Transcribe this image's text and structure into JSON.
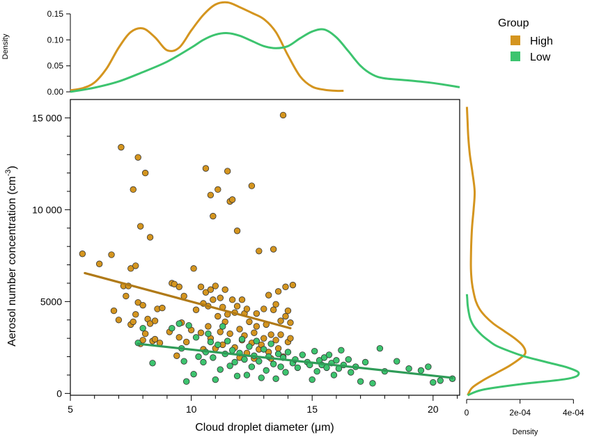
{
  "chart_data": {
    "type": "scatter",
    "xlabel_text": "Cloud droplet diameter (",
    "xlabel_unit": "μm",
    "xlabel_close": ")",
    "ylabel_text": "Aerosol number concentration (cm",
    "ylabel_exp": "-3",
    "ylabel_close": ")",
    "xlim": [
      5,
      21.1
    ],
    "ylim": [
      -100,
      16000
    ],
    "x_ticks": [
      5,
      10,
      15,
      20
    ],
    "y_ticks": [
      0,
      5000,
      10000,
      15000
    ],
    "y_tick_labels": [
      "0",
      "5000",
      "10 000",
      "15 000"
    ],
    "legend": {
      "title": "Group",
      "entries": [
        {
          "label": "High",
          "color": "#d4951f"
        },
        {
          "label": "Low",
          "color": "#3dc46f"
        }
      ]
    },
    "series": [
      {
        "name": "High",
        "color": "#d4951f",
        "trend_color": "#b07a18",
        "trend": [
          [
            5.6,
            6550
          ],
          [
            14.1,
            3550
          ]
        ],
        "points": [
          [
            5.5,
            7600
          ],
          [
            6.2,
            7050
          ],
          [
            6.7,
            7550
          ],
          [
            6.8,
            4500
          ],
          [
            7.0,
            4000
          ],
          [
            7.1,
            13400
          ],
          [
            7.2,
            5850
          ],
          [
            7.3,
            5300
          ],
          [
            7.4,
            5850
          ],
          [
            7.5,
            3750
          ],
          [
            7.5,
            6800
          ],
          [
            7.6,
            11100
          ],
          [
            7.6,
            3900
          ],
          [
            7.7,
            6950
          ],
          [
            7.7,
            4300
          ],
          [
            7.8,
            12850
          ],
          [
            7.8,
            4950
          ],
          [
            7.9,
            2700
          ],
          [
            7.9,
            9100
          ],
          [
            8.0,
            4800
          ],
          [
            8.0,
            2900
          ],
          [
            8.1,
            3250
          ],
          [
            8.1,
            12000
          ],
          [
            8.2,
            4050
          ],
          [
            8.3,
            8500
          ],
          [
            8.3,
            3800
          ],
          [
            8.4,
            2850
          ],
          [
            8.5,
            3950
          ],
          [
            8.5,
            2950
          ],
          [
            8.6,
            4600
          ],
          [
            8.7,
            2750
          ],
          [
            8.8,
            4650
          ],
          [
            9.1,
            3350
          ],
          [
            9.2,
            6000
          ],
          [
            9.3,
            5950
          ],
          [
            9.4,
            2050
          ],
          [
            9.5,
            5800
          ],
          [
            9.5,
            3050
          ],
          [
            9.6,
            3850
          ],
          [
            9.7,
            5300
          ],
          [
            9.8,
            2800
          ],
          [
            10.0,
            3450
          ],
          [
            10.1,
            6800
          ],
          [
            10.2,
            4550
          ],
          [
            10.4,
            5800
          ],
          [
            10.4,
            3300
          ],
          [
            10.5,
            4900
          ],
          [
            10.5,
            2400
          ],
          [
            10.6,
            12250
          ],
          [
            10.6,
            5500
          ],
          [
            10.7,
            4750
          ],
          [
            10.7,
            3650
          ],
          [
            10.8,
            10800
          ],
          [
            10.8,
            5650
          ],
          [
            10.8,
            3000
          ],
          [
            10.9,
            9650
          ],
          [
            10.9,
            5100
          ],
          [
            11.0,
            5850
          ],
          [
            11.0,
            2450
          ],
          [
            11.1,
            4200
          ],
          [
            11.1,
            11100
          ],
          [
            11.2,
            5200
          ],
          [
            11.2,
            3350
          ],
          [
            11.3,
            4700
          ],
          [
            11.3,
            2650
          ],
          [
            11.4,
            5650
          ],
          [
            11.4,
            3900
          ],
          [
            11.5,
            12100
          ],
          [
            11.5,
            4300
          ],
          [
            11.6,
            10450
          ],
          [
            11.6,
            3250
          ],
          [
            11.7,
            10550
          ],
          [
            11.7,
            5100
          ],
          [
            11.8,
            4400
          ],
          [
            11.8,
            2500
          ],
          [
            11.9,
            8850
          ],
          [
            11.9,
            4750
          ],
          [
            12.0,
            3500
          ],
          [
            12.0,
            1950
          ],
          [
            12.1,
            2900
          ],
          [
            12.1,
            5100
          ],
          [
            12.2,
            4350
          ],
          [
            12.2,
            3150
          ],
          [
            12.3,
            4600
          ],
          [
            12.3,
            2200
          ],
          [
            12.4,
            3900
          ],
          [
            12.5,
            11300
          ],
          [
            12.5,
            2750
          ],
          [
            12.6,
            3300
          ],
          [
            12.6,
            1900
          ],
          [
            12.7,
            4350
          ],
          [
            12.7,
            3650
          ],
          [
            12.8,
            7750
          ],
          [
            12.8,
            2400
          ],
          [
            12.9,
            2650
          ],
          [
            13.0,
            3000
          ],
          [
            13.0,
            4600
          ],
          [
            13.1,
            3750
          ],
          [
            13.2,
            2250
          ],
          [
            13.2,
            5350
          ],
          [
            13.3,
            3200
          ],
          [
            13.3,
            1900
          ],
          [
            13.4,
            7850
          ],
          [
            13.4,
            4550
          ],
          [
            13.5,
            4850
          ],
          [
            13.5,
            2900
          ],
          [
            13.6,
            5550
          ],
          [
            13.6,
            2450
          ],
          [
            13.7,
            3950
          ],
          [
            13.7,
            3200
          ],
          [
            13.8,
            15150
          ],
          [
            13.8,
            2000
          ],
          [
            13.9,
            4200
          ],
          [
            13.9,
            5800
          ],
          [
            14.0,
            2800
          ],
          [
            14.0,
            4500
          ],
          [
            14.1,
            3000
          ],
          [
            14.1,
            3850
          ],
          [
            14.2,
            5900
          ]
        ]
      },
      {
        "name": "Low",
        "color": "#3dc46f",
        "trend_color": "#2f9c58",
        "trend": [
          [
            7.8,
            2700
          ],
          [
            20.8,
            850
          ]
        ],
        "points": [
          [
            7.8,
            2750
          ],
          [
            8.0,
            3550
          ],
          [
            8.4,
            1650
          ],
          [
            9.2,
            3550
          ],
          [
            9.5,
            3800
          ],
          [
            9.6,
            2450
          ],
          [
            9.7,
            1750
          ],
          [
            9.8,
            650
          ],
          [
            9.9,
            3700
          ],
          [
            10.1,
            1050
          ],
          [
            10.2,
            3050
          ],
          [
            10.3,
            2000
          ],
          [
            10.5,
            1700
          ],
          [
            10.6,
            2250
          ],
          [
            10.7,
            3250
          ],
          [
            10.8,
            2800
          ],
          [
            10.9,
            1950
          ],
          [
            11.0,
            750
          ],
          [
            11.1,
            2650
          ],
          [
            11.2,
            1300
          ],
          [
            11.3,
            3650
          ],
          [
            11.4,
            2150
          ],
          [
            11.5,
            2850
          ],
          [
            11.6,
            1500
          ],
          [
            11.7,
            2350
          ],
          [
            11.8,
            1700
          ],
          [
            11.9,
            950
          ],
          [
            12.0,
            2200
          ],
          [
            12.1,
            2950
          ],
          [
            12.2,
            1850
          ],
          [
            12.3,
            1000
          ],
          [
            12.4,
            2550
          ],
          [
            12.5,
            1450
          ],
          [
            12.6,
            2050
          ],
          [
            12.7,
            2850
          ],
          [
            12.8,
            1750
          ],
          [
            12.9,
            850
          ],
          [
            13.0,
            2400
          ],
          [
            13.1,
            1250
          ],
          [
            13.2,
            2000
          ],
          [
            13.3,
            2700
          ],
          [
            13.4,
            1600
          ],
          [
            13.5,
            800
          ],
          [
            13.6,
            2150
          ],
          [
            13.7,
            1450
          ],
          [
            13.8,
            1950
          ],
          [
            13.9,
            1150
          ],
          [
            14.0,
            2250
          ],
          [
            14.2,
            1650
          ],
          [
            14.3,
            1850
          ],
          [
            14.4,
            1400
          ],
          [
            14.6,
            2100
          ],
          [
            14.8,
            1700
          ],
          [
            14.9,
            1550
          ],
          [
            15.0,
            750
          ],
          [
            15.1,
            2300
          ],
          [
            15.2,
            1200
          ],
          [
            15.3,
            1800
          ],
          [
            15.4,
            1550
          ],
          [
            15.5,
            1950
          ],
          [
            15.6,
            1400
          ],
          [
            15.7,
            2100
          ],
          [
            15.8,
            1650
          ],
          [
            15.9,
            1000
          ],
          [
            16.0,
            1800
          ],
          [
            16.1,
            1350
          ],
          [
            16.2,
            2350
          ],
          [
            16.3,
            1550
          ],
          [
            16.5,
            1850
          ],
          [
            16.6,
            1150
          ],
          [
            16.8,
            1450
          ],
          [
            17.0,
            650
          ],
          [
            17.2,
            1700
          ],
          [
            17.5,
            550
          ],
          [
            17.8,
            2450
          ],
          [
            18.0,
            1200
          ],
          [
            18.5,
            1750
          ],
          [
            19.0,
            1350
          ],
          [
            19.5,
            1250
          ],
          [
            19.8,
            1450
          ],
          [
            20.0,
            600
          ],
          [
            20.3,
            700
          ],
          [
            20.8,
            800
          ]
        ]
      }
    ],
    "top_density": {
      "ylabel": "Density",
      "ylim": [
        0,
        0.17
      ],
      "y_ticks": [
        0.0,
        0.05,
        0.1,
        0.15
      ],
      "y_tick_labels": [
        "0.00",
        "0.05",
        "0.10",
        "0.15"
      ],
      "series": [
        {
          "name": "High",
          "color": "#d4951f",
          "x": [
            5,
            5.5,
            6,
            6.5,
            7,
            7.5,
            8,
            8.5,
            9,
            9.5,
            10,
            10.5,
            11,
            11.5,
            12,
            12.5,
            13,
            13.5,
            14,
            14.5,
            15,
            15.5,
            16,
            16.3
          ],
          "y": [
            0.003,
            0.007,
            0.018,
            0.045,
            0.085,
            0.115,
            0.122,
            0.105,
            0.08,
            0.085,
            0.118,
            0.148,
            0.168,
            0.172,
            0.163,
            0.152,
            0.14,
            0.115,
            0.07,
            0.03,
            0.01,
            0.004,
            0.002,
            0.002
          ]
        },
        {
          "name": "Low",
          "color": "#3dc46f",
          "x": [
            5,
            6,
            7,
            8,
            9,
            10,
            10.5,
            11,
            11.5,
            12,
            12.5,
            13,
            13.5,
            14,
            14.5,
            15,
            15.5,
            16,
            16.5,
            17,
            17.5,
            18,
            19,
            20,
            21.1
          ],
          "y": [
            0.0,
            0.008,
            0.02,
            0.038,
            0.058,
            0.085,
            0.1,
            0.11,
            0.113,
            0.108,
            0.098,
            0.088,
            0.084,
            0.088,
            0.103,
            0.116,
            0.12,
            0.105,
            0.078,
            0.05,
            0.033,
            0.026,
            0.022,
            0.017,
            0.009
          ]
        }
      ]
    },
    "right_density": {
      "xlabel": "Density",
      "xlim": [
        0,
        0.00042
      ],
      "x_ticks": [
        0,
        0.0002,
        0.0004
      ],
      "x_tick_labels": [
        "0",
        "2e-04",
        "4e-04"
      ],
      "series": [
        {
          "name": "High",
          "color": "#d4951f",
          "y": [
            -100,
            300,
            700,
            1100,
            1500,
            1900,
            2200,
            2600,
            3000,
            3400,
            3800,
            4200,
            4600,
            5000,
            5500,
            6000,
            6500,
            7000,
            8000,
            9000,
            10000,
            11000,
            12000,
            13000,
            14000,
            15000,
            15600
          ],
          "x": [
            4e-06,
            2e-05,
            6e-05,
            0.00011,
            0.00016,
            0.0002,
            0.00022,
            0.00021,
            0.00018,
            0.00014,
            0.0001,
            7e-05,
            4.8e-05,
            3.5e-05,
            2.6e-05,
            2e-05,
            1.7e-05,
            1.6e-05,
            1.7e-05,
            2e-05,
            2.6e-05,
            3e-05,
            2.2e-05,
            1.2e-05,
            6e-06,
            3e-06,
            1e-06
          ]
        },
        {
          "name": "Low",
          "color": "#3dc46f",
          "y": [
            -100,
            200,
            500,
            800,
            1100,
            1400,
            1700,
            2000,
            2300,
            2600,
            2900,
            3200,
            3600,
            4000,
            4400,
            4800,
            5200,
            5400
          ],
          "x": [
            4e-06,
            6e-05,
            0.0002,
            0.00038,
            0.00042,
            0.00038,
            0.0003,
            0.00022,
            0.00016,
            0.00011,
            8e-05,
            5.5e-05,
            3e-05,
            1.5e-05,
            8e-06,
            4e-06,
            2e-06,
            1e-06
          ]
        }
      ]
    }
  }
}
